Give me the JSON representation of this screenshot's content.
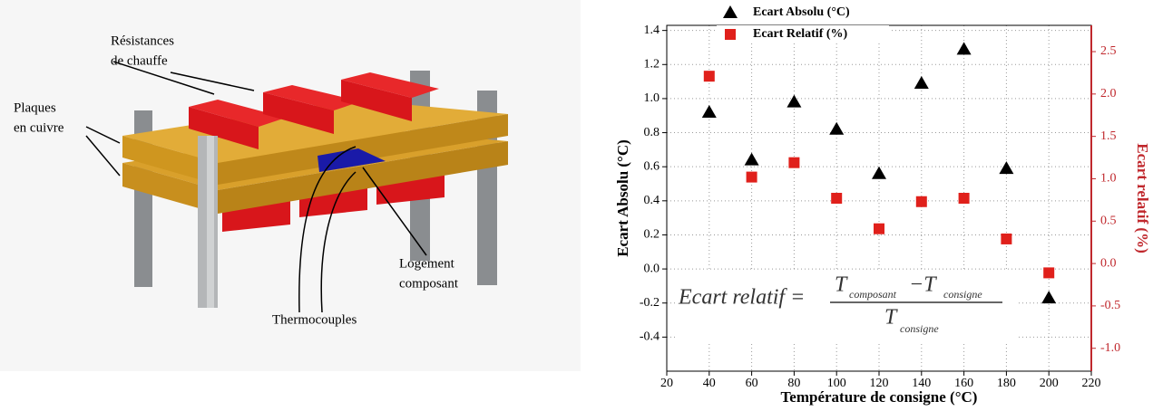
{
  "diagram": {
    "heater_label": [
      "Résistances",
      "de chauffe"
    ],
    "plates_label": [
      "Plaques",
      "en cuivre"
    ],
    "housing_label": [
      "Logement",
      "composant"
    ],
    "thermocouple_label": "Thermocouples"
  },
  "chart_data": {
    "type": "scatter",
    "x_label": "Température de consigne (°C)",
    "y_label": "Ecart Absolu (°C)",
    "y2_label": "Ecart relatif (%)",
    "annotation": {
      "lhs": "Ecart relatif =",
      "num_t1": "T",
      "num_sub1": "composant",
      "num_t2": "−T",
      "num_sub2": "consigne",
      "den_t": "T",
      "den_sub": "consigne"
    },
    "x": [
      40,
      60,
      80,
      100,
      120,
      140,
      160,
      180,
      200
    ],
    "series": [
      {
        "name": "Ecart Absolu (°C)",
        "color": "#000000",
        "marker": "triangle",
        "values": [
          0.92,
          0.64,
          0.98,
          0.82,
          0.56,
          1.09,
          1.29,
          0.59,
          -0.17
        ]
      },
      {
        "name": "Ecart Relatif (%)",
        "color": "#e0201b",
        "marker": "square",
        "axis": "y2",
        "values": [
          2.21,
          1.02,
          1.19,
          0.77,
          0.41,
          0.73,
          0.77,
          0.29,
          -0.11
        ]
      }
    ],
    "xlim": [
      20,
      220
    ],
    "xticks": [
      20,
      40,
      60,
      80,
      100,
      120,
      140,
      160,
      180,
      200,
      220
    ],
    "ylim": [
      -0.6,
      1.43
    ],
    "yticks": [
      -0.4,
      -0.2,
      {
        "value": 0,
        "label": "0.0"
      },
      0.2,
      0.4,
      0.6,
      0.8,
      {
        "value": 1,
        "label": "1.0"
      },
      1.2,
      1.4
    ],
    "y2lim": [
      -1.27,
      2.81
    ],
    "y2ticks": [
      {
        "value": -1,
        "label": "-1.0"
      },
      -0.5,
      {
        "value": 0,
        "label": "0.0"
      },
      0.5,
      {
        "value": 1,
        "label": "1.0"
      },
      1.5,
      {
        "value": 2,
        "label": "2.0"
      },
      2.5
    ],
    "y2_color": "#c0282d",
    "grid": true
  }
}
